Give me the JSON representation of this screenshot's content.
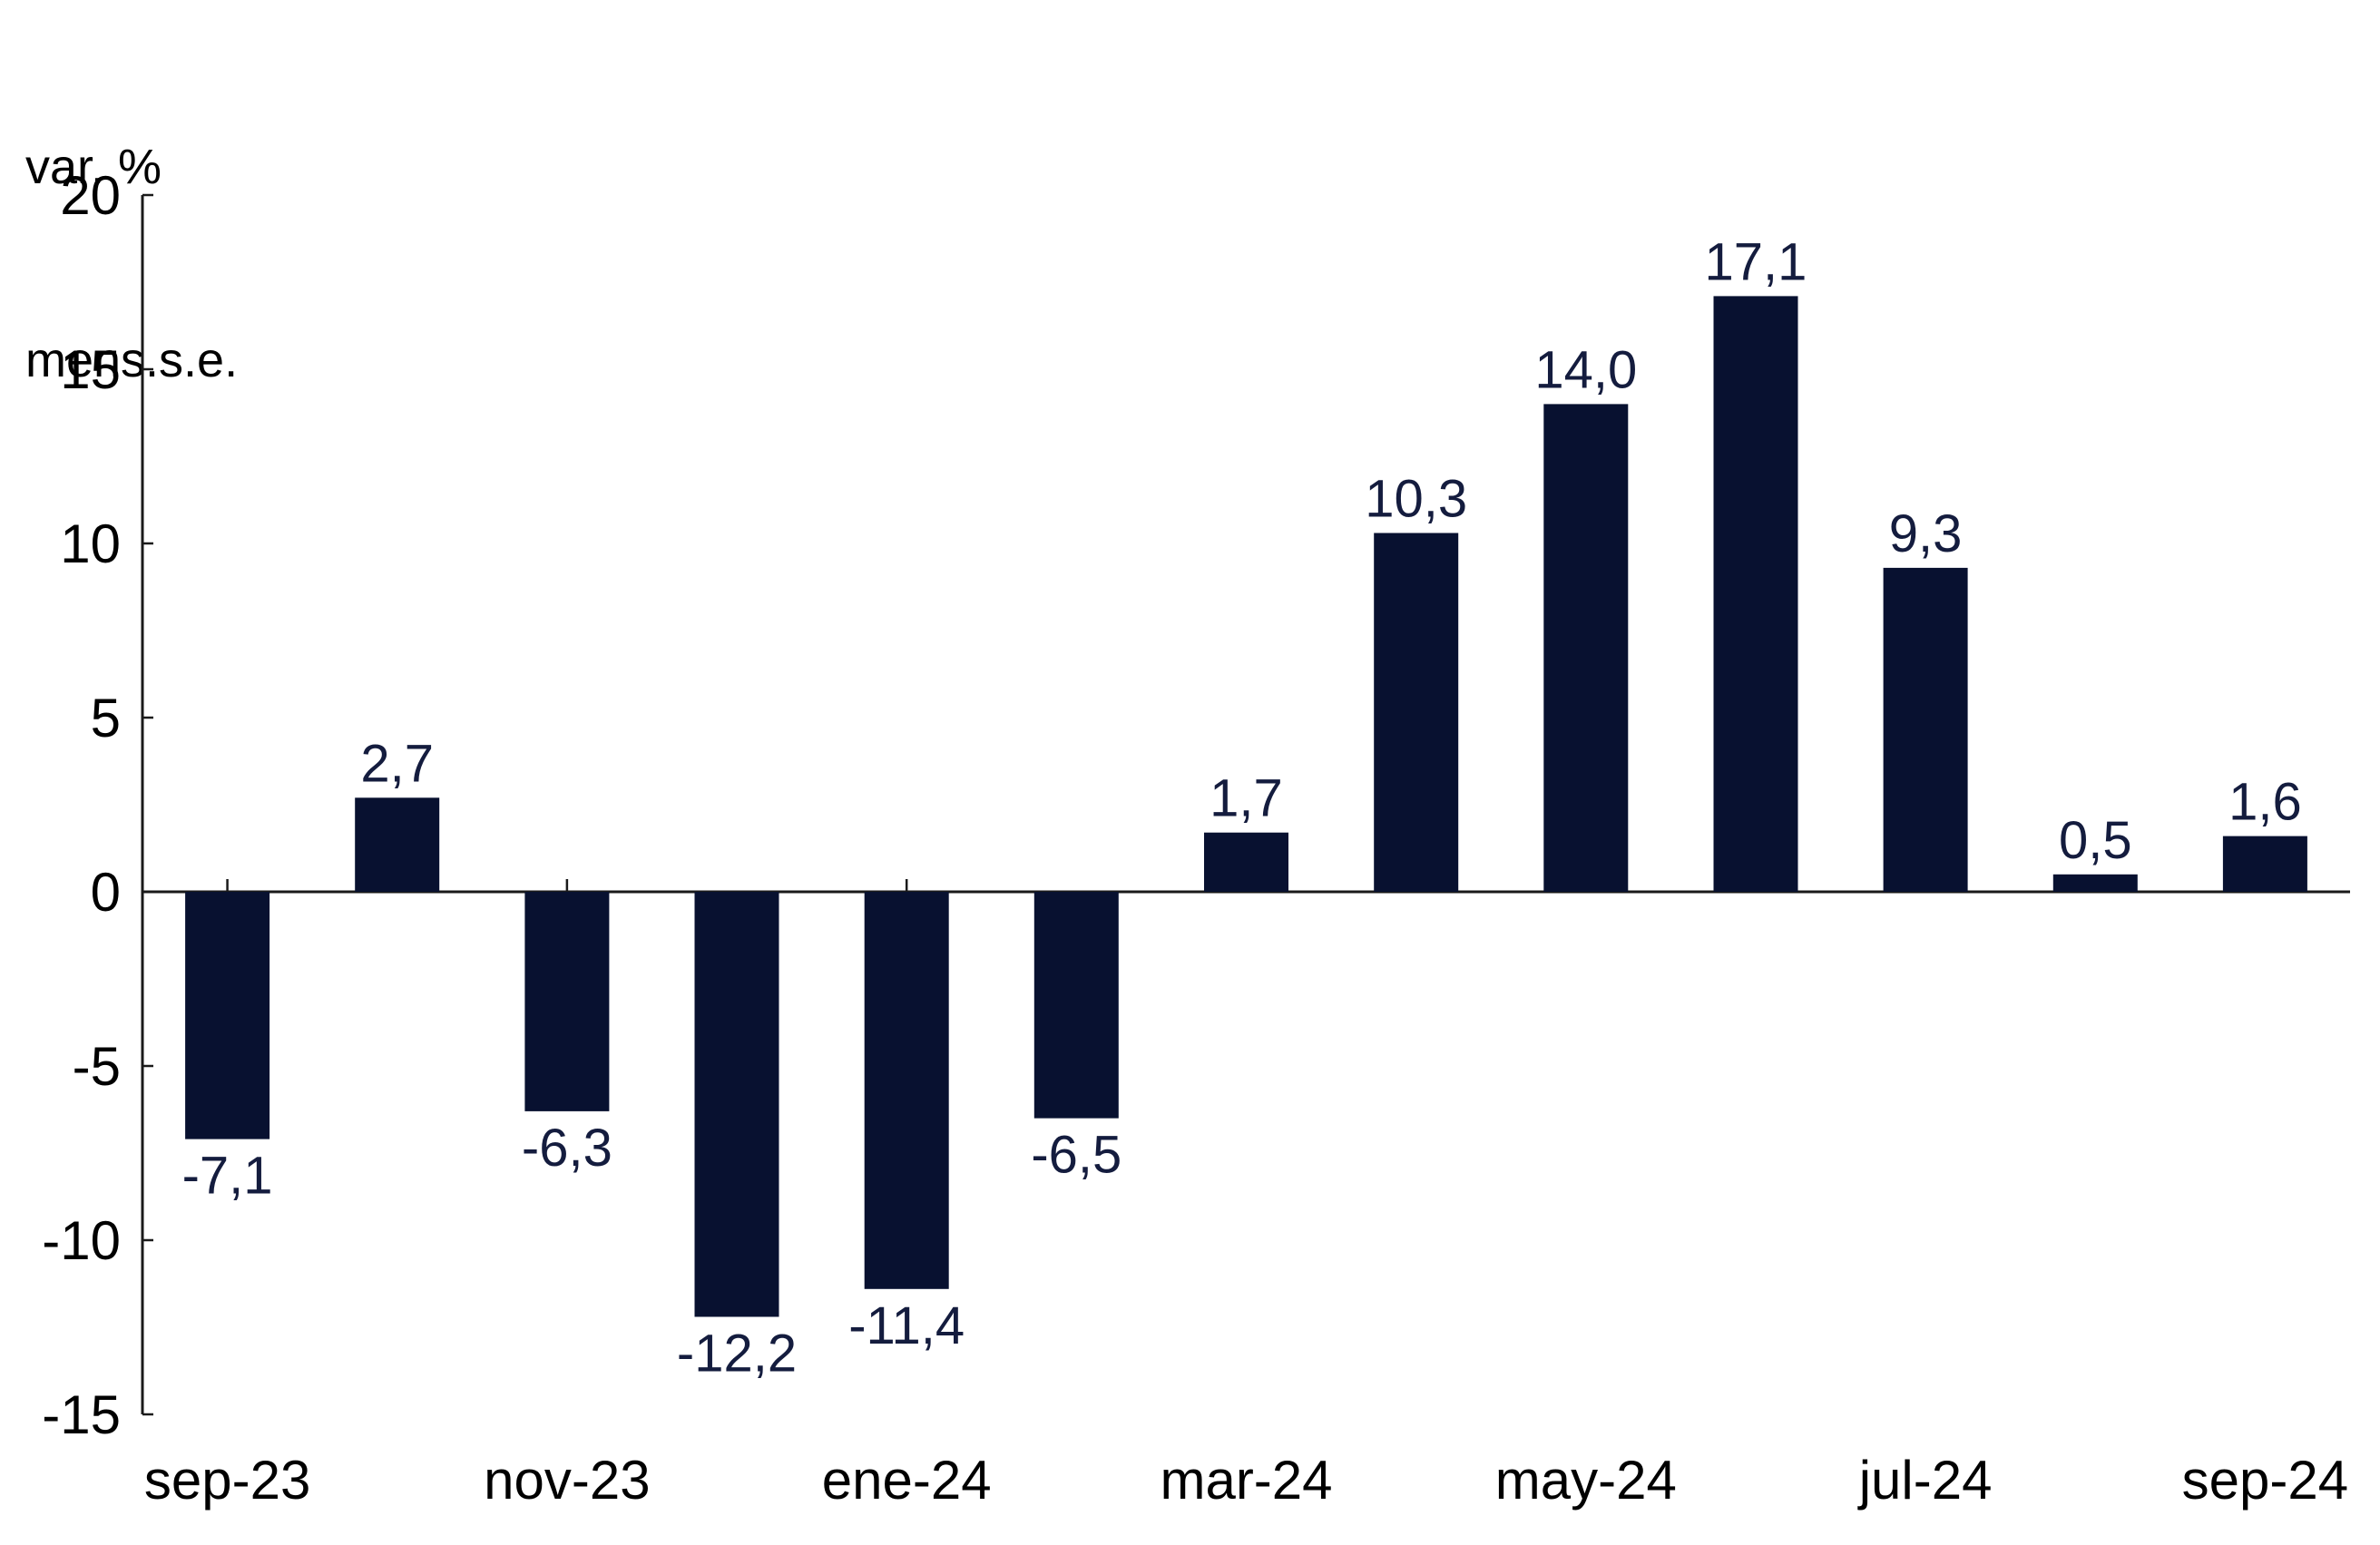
{
  "chart_data": {
    "type": "bar",
    "y_axis_title_lines": [
      "var. %",
      "mens.s.e."
    ],
    "values": [
      -7.1,
      2.7,
      -6.3,
      -12.2,
      -11.4,
      -6.5,
      1.7,
      10.3,
      14.0,
      17.1,
      9.3,
      0.5,
      1.6
    ],
    "value_labels": [
      "-7,1",
      "2,7",
      "-6,3",
      "-12,2",
      "-11,4",
      "-6,5",
      "1,7",
      "10,3",
      "14,0",
      "17,1",
      "9,3",
      "0,5",
      "1,6"
    ],
    "x_tick_labels": [
      "sep-23",
      "nov-23",
      "ene-24",
      "mar-24",
      "may-24",
      "jul-24",
      "sep-24"
    ],
    "x_tick_bar_indices": [
      0,
      2,
      4,
      6,
      8,
      10,
      12
    ],
    "y_ticks": [
      20,
      15,
      10,
      5,
      0,
      -5,
      -10,
      -15
    ],
    "ylim": [
      -15,
      20
    ],
    "grid": "off",
    "legend": "none",
    "colors": {
      "bar": "#081130",
      "value_label": "#141c3e",
      "axis": "#1a1a1a",
      "tick_text": "#000000",
      "background": "#ffffff"
    }
  }
}
